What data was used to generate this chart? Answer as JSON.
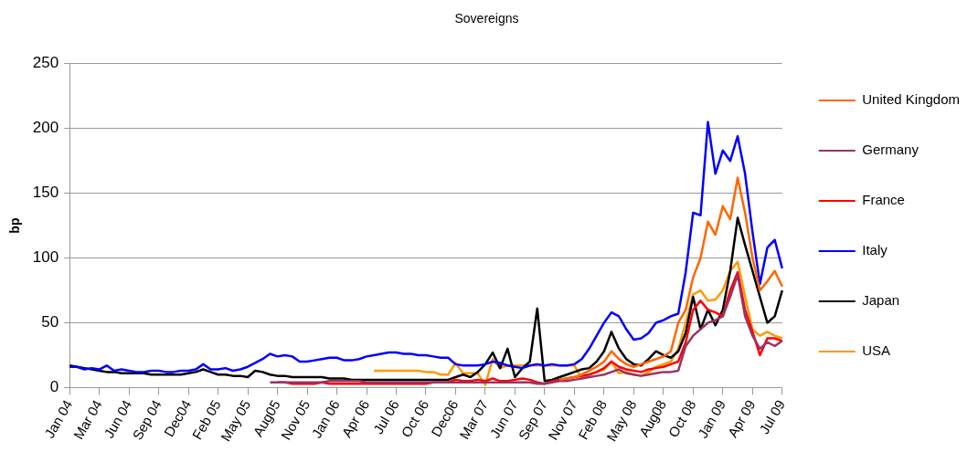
{
  "chart_data": {
    "type": "line",
    "title": "Sovereigns",
    "ylabel": "bp",
    "categories": [
      "Jan 04",
      null,
      null,
      null,
      "Mar 04",
      null,
      null,
      null,
      "Jun 04",
      null,
      null,
      null,
      "Sep 04",
      null,
      null,
      null,
      "Dec04",
      null,
      null,
      null,
      "Feb 05",
      null,
      null,
      null,
      "May 05",
      null,
      null,
      null,
      "Aug05",
      null,
      null,
      null,
      "Nov 05",
      null,
      null,
      null,
      "Jan 06",
      null,
      null,
      null,
      "Apr 06",
      null,
      null,
      null,
      "Jul 06",
      null,
      null,
      null,
      "Oct 06",
      null,
      null,
      null,
      "Dec06",
      null,
      null,
      null,
      "Mar 07",
      null,
      null,
      null,
      "Jun 07",
      null,
      null,
      null,
      "Sep 07",
      null,
      null,
      null,
      "Nov 07",
      null,
      null,
      null,
      "Feb 08",
      null,
      null,
      null,
      "May 08",
      null,
      null,
      null,
      "Aug08",
      null,
      null,
      null,
      "Oct 08",
      null,
      null,
      null,
      "Jan 09",
      null,
      null,
      null,
      "Apr 09",
      null,
      null,
      null,
      "Jul 09"
    ],
    "series": [
      {
        "name": "United Kingdom",
        "color": "#ff6600",
        "values": [
          null,
          null,
          null,
          null,
          null,
          null,
          null,
          null,
          null,
          null,
          null,
          null,
          null,
          null,
          null,
          null,
          null,
          null,
          null,
          null,
          null,
          null,
          null,
          null,
          null,
          null,
          null,
          null,
          null,
          null,
          null,
          null,
          null,
          null,
          null,
          null,
          null,
          null,
          null,
          null,
          null,
          null,
          null,
          null,
          null,
          null,
          null,
          null,
          null,
          null,
          null,
          null,
          null,
          null,
          null,
          null,
          null,
          null,
          null,
          null,
          null,
          null,
          null,
          null,
          null,
          null,
          6,
          7,
          8,
          10,
          13,
          16,
          20,
          28,
          22,
          18,
          16,
          18,
          20,
          22,
          24,
          28,
          50,
          60,
          85,
          100,
          128,
          118,
          140,
          130,
          162,
          135,
          100,
          75,
          82,
          90,
          78
        ]
      },
      {
        "name": "Germany",
        "color": "#993366",
        "values": [
          null,
          null,
          null,
          null,
          null,
          null,
          null,
          null,
          null,
          null,
          null,
          null,
          null,
          null,
          null,
          null,
          null,
          null,
          null,
          null,
          null,
          null,
          null,
          null,
          null,
          null,
          null,
          4,
          4,
          4,
          4,
          4,
          4,
          4,
          4,
          5,
          5,
          5,
          5,
          5,
          4,
          4,
          4,
          4,
          4,
          4,
          4,
          4,
          4,
          4,
          4,
          4,
          4,
          4,
          4,
          4,
          4,
          4,
          4,
          4,
          4,
          4,
          4,
          3,
          3,
          4,
          5,
          5,
          6,
          7,
          8,
          9,
          10,
          12,
          14,
          11,
          10,
          9,
          10,
          11,
          12,
          12,
          13,
          32,
          40,
          45,
          50,
          52,
          55,
          70,
          87,
          55,
          40,
          30,
          35,
          32,
          36
        ]
      },
      {
        "name": "France",
        "color": "#ff0000",
        "values": [
          null,
          null,
          null,
          null,
          null,
          null,
          null,
          null,
          null,
          null,
          null,
          null,
          null,
          null,
          null,
          null,
          null,
          null,
          null,
          null,
          null,
          null,
          null,
          null,
          null,
          null,
          null,
          null,
          4,
          4,
          3,
          3,
          3,
          3,
          4,
          3,
          3,
          3,
          3,
          3,
          3,
          3,
          3,
          3,
          3,
          3,
          3,
          3,
          3,
          4,
          4,
          4,
          6,
          5,
          5,
          6,
          5,
          7,
          5,
          5,
          6,
          7,
          6,
          4,
          3,
          5,
          6,
          7,
          8,
          9,
          10,
          12,
          15,
          20,
          16,
          14,
          13,
          12,
          14,
          15,
          16,
          18,
          20,
          35,
          60,
          67,
          60,
          58,
          55,
          75,
          89,
          60,
          43,
          25,
          38,
          38,
          36
        ]
      },
      {
        "name": "Italy",
        "color": "#0000ff",
        "values": [
          16,
          16,
          14,
          15,
          14,
          17,
          13,
          14,
          13,
          12,
          12,
          13,
          13,
          12,
          12,
          13,
          13,
          14,
          18,
          14,
          14,
          15,
          13,
          14,
          16,
          19,
          22,
          26,
          24,
          25,
          24,
          20,
          20,
          21,
          22,
          23,
          23,
          21,
          21,
          22,
          24,
          25,
          26,
          27,
          27,
          26,
          26,
          25,
          25,
          24,
          23,
          23,
          18,
          17,
          17,
          17,
          18,
          20,
          19,
          17,
          16,
          15,
          17,
          18,
          17,
          18,
          17,
          17,
          18,
          22,
          30,
          40,
          50,
          58,
          55,
          45,
          37,
          38,
          42,
          50,
          52,
          55,
          57,
          89,
          135,
          133,
          205,
          165,
          183,
          175,
          194,
          165,
          120,
          80,
          108,
          114,
          92
        ]
      },
      {
        "name": "Japan",
        "color": "#000000",
        "values": [
          17,
          16,
          15,
          14,
          13,
          12,
          12,
          11,
          11,
          11,
          11,
          10,
          10,
          10,
          10,
          10,
          11,
          12,
          14,
          12,
          10,
          10,
          9,
          9,
          8,
          13,
          12,
          10,
          9,
          9,
          8,
          8,
          8,
          8,
          8,
          7,
          7,
          7,
          6,
          6,
          6,
          6,
          6,
          6,
          6,
          6,
          6,
          6,
          6,
          6,
          6,
          6,
          8,
          10,
          8,
          12,
          18,
          27,
          15,
          30,
          8,
          15,
          20,
          61,
          5,
          6,
          8,
          10,
          12,
          14,
          15,
          20,
          28,
          43,
          30,
          22,
          18,
          17,
          22,
          28,
          25,
          23,
          28,
          42,
          70,
          45,
          60,
          48,
          60,
          90,
          131,
          110,
          90,
          70,
          50,
          55,
          75
        ]
      },
      {
        "name": "USA",
        "color": "#ff9900",
        "values": [
          null,
          null,
          null,
          null,
          null,
          null,
          null,
          null,
          null,
          null,
          null,
          null,
          null,
          null,
          null,
          null,
          null,
          null,
          null,
          null,
          null,
          null,
          null,
          null,
          null,
          null,
          null,
          null,
          null,
          null,
          null,
          null,
          null,
          null,
          null,
          null,
          null,
          null,
          null,
          null,
          null,
          13,
          13,
          13,
          13,
          13,
          13,
          13,
          12,
          12,
          10,
          10,
          19,
          11,
          11,
          11,
          2,
          22,
          15,
          17,
          17,
          17,
          17,
          17,
          17,
          17,
          17,
          17,
          17,
          7,
          10,
          12,
          14,
          20,
          11,
          12,
          10,
          9,
          12,
          16,
          18,
          20,
          30,
          50,
          72,
          75,
          67,
          68,
          75,
          90,
          97,
          70,
          45,
          40,
          43,
          40,
          38
        ]
      }
    ],
    "ylim": [
      0,
      250
    ],
    "yticks": [
      0,
      50,
      100,
      150,
      200,
      250
    ],
    "grid": "y",
    "legend": "right",
    "marker": "none",
    "line_style": "solid"
  }
}
